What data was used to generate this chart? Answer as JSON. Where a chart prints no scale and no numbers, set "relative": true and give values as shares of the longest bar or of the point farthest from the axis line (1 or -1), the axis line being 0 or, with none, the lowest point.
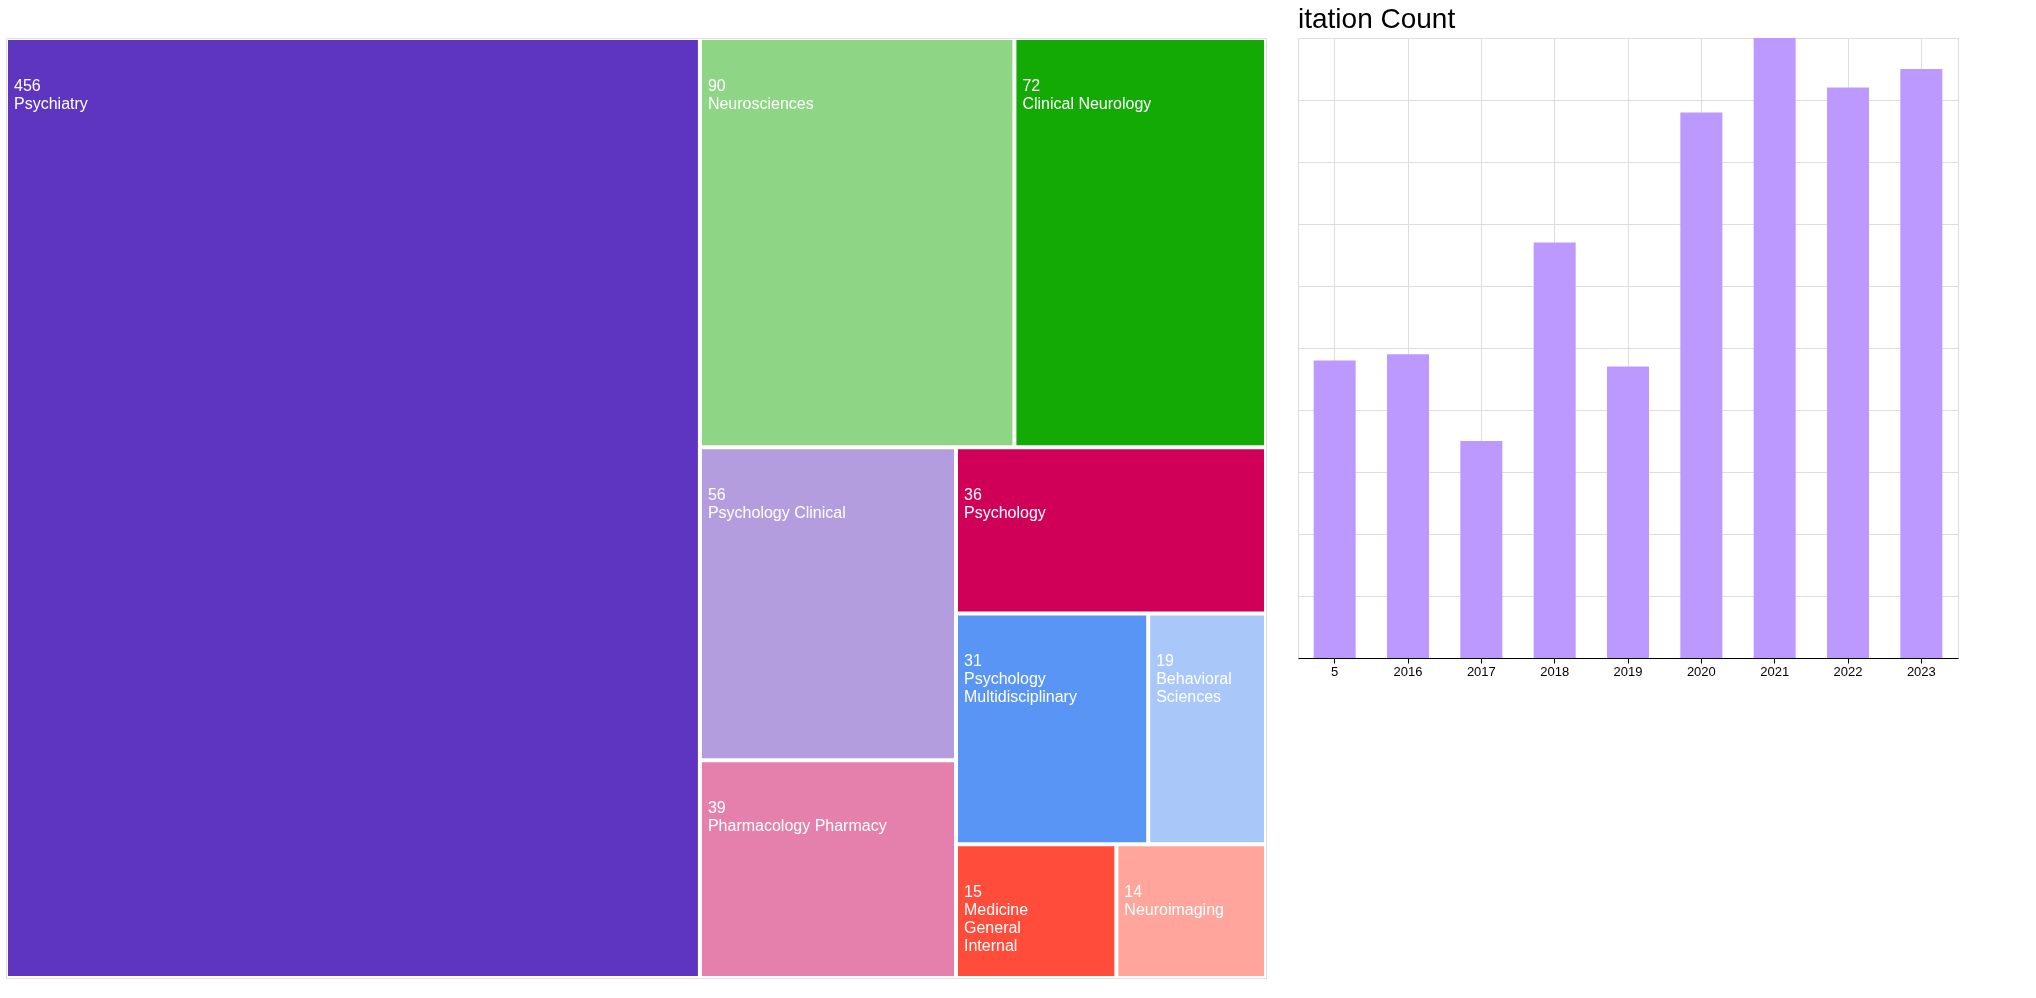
{
  "chart_data": [
    {
      "type": "other",
      "categories": [
        "Psychiatry",
        "Neurosciences",
        "Clinical Neurology",
        "Psychology Clinical",
        "Pharmacology Pharmacy",
        "Psychology",
        "Psychology Multidisciplinary",
        "Behavioral Sciences",
        "Medicine General Internal",
        "Neuroimaging"
      ],
      "values": [
        456,
        90,
        72,
        56,
        39,
        36,
        31,
        19,
        15,
        14
      ],
      "colors": [
        "#5e35c1",
        "#8ed685",
        "#14aa05",
        "#b39ddf",
        "#e57fab",
        "#d00059",
        "#5895f4",
        "#a9c8f9",
        "#ff4c3b",
        "#ffa59c"
      ],
      "data_labels": true
    },
    {
      "type": "bar",
      "title": "itation Count",
      "relative": true,
      "categories": [
        "5",
        "2016",
        "2017",
        "2018",
        "2019",
        "2020",
        "2021",
        "2022",
        "2023"
      ],
      "values": [
        0.48,
        0.49,
        0.35,
        0.67,
        0.47,
        0.88,
        1,
        0.92,
        0.95
      ],
      "color": "#bb99ff",
      "grid": true
    }
  ]
}
